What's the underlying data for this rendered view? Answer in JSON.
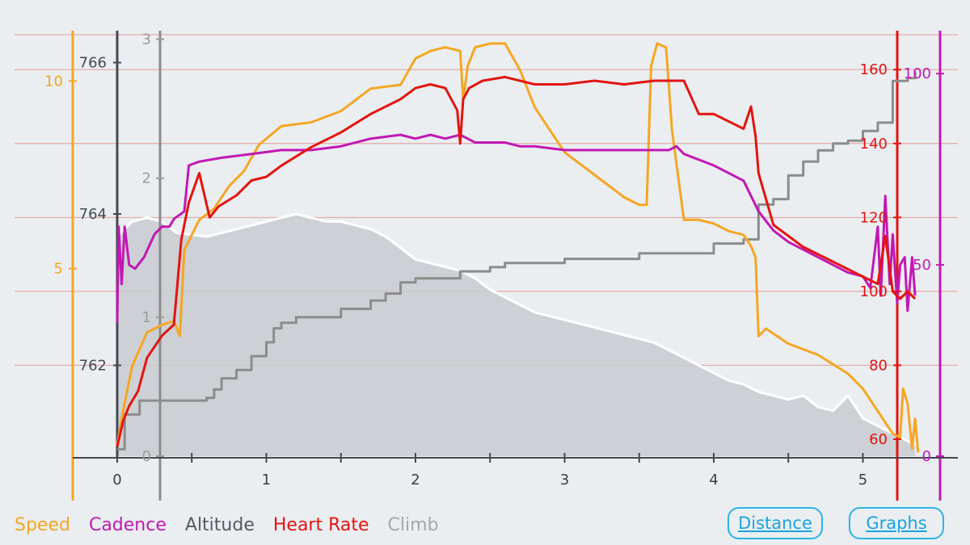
{
  "legend": {
    "speed": "Speed",
    "cadence": "Cadence",
    "altitude": "Altitude",
    "heart_rate": "Heart Rate",
    "climb": "Climb"
  },
  "buttons": {
    "distance": "Distance",
    "graphs": "Graphs"
  },
  "colors": {
    "background": "#eaeef1",
    "speed": "#f5a623",
    "cadence": "#c218b3",
    "altitude_axis": "#444a55",
    "heart_rate": "#e3140f",
    "climb": "#8c8c8c",
    "altitude_fill": "#c8cbd0",
    "button": "#2cb4e8"
  },
  "chart_data": {
    "type": "line",
    "x": {
      "range": [
        0,
        5.4
      ],
      "ticks": [
        0,
        1,
        2,
        3,
        4,
        5
      ],
      "tick_labels": [
        "0",
        "1",
        "2",
        "3",
        "4",
        "5"
      ]
    },
    "axes": {
      "speed": {
        "range": [
          0,
          11.3
        ],
        "ticks": [
          5,
          10
        ],
        "tick_labels": [
          "5",
          "10"
        ]
      },
      "altitude": {
        "range": [
          760.8,
          766.4
        ],
        "ticks": [
          762,
          764,
          766
        ],
        "tick_labels": [
          "762",
          "764",
          "766"
        ]
      },
      "climb": {
        "range": [
          0,
          3.05
        ],
        "ticks": [
          0,
          1,
          2,
          3
        ],
        "tick_labels": [
          "0",
          "1",
          "2",
          "3"
        ]
      },
      "heart_rate": {
        "range": [
          55.4,
          170.1
        ],
        "ticks": [
          60,
          80,
          100,
          120,
          140,
          160
        ],
        "tick_labels": [
          "60",
          "80",
          "100",
          "120",
          "140",
          "160"
        ]
      },
      "cadence": {
        "range": [
          0,
          110.8
        ],
        "ticks": [
          0,
          50,
          100
        ],
        "tick_labels": [
          "0",
          "50",
          "100"
        ]
      }
    },
    "series": [
      {
        "name": "Speed",
        "axis": "speed",
        "style": "line",
        "x": [
          0,
          0.03,
          0.1,
          0.2,
          0.3,
          0.38,
          0.42,
          0.45,
          0.55,
          0.65,
          0.75,
          0.85,
          0.95,
          1.1,
          1.3,
          1.5,
          1.7,
          1.9,
          2.0,
          2.1,
          2.2,
          2.3,
          2.32,
          2.35,
          2.4,
          2.5,
          2.6,
          2.7,
          2.8,
          2.9,
          3.0,
          3.1,
          3.2,
          3.3,
          3.4,
          3.5,
          3.55,
          3.58,
          3.62,
          3.68,
          3.72,
          3.8,
          3.9,
          4.0,
          4.1,
          4.2,
          4.25,
          4.28,
          4.3,
          4.35,
          4.5,
          4.7,
          4.9,
          5.0,
          5.1,
          5.2,
          5.25,
          5.27,
          5.3,
          5.33,
          5.35,
          5.37
        ],
        "y": [
          0.3,
          1.0,
          2.4,
          3.3,
          3.5,
          3.6,
          3.2,
          5.5,
          6.3,
          6.6,
          7.2,
          7.6,
          8.3,
          8.8,
          8.9,
          9.2,
          9.8,
          9.9,
          10.6,
          10.8,
          10.9,
          10.8,
          9.5,
          10.4,
          10.9,
          11.0,
          11.0,
          10.3,
          9.3,
          8.7,
          8.1,
          7.8,
          7.5,
          7.2,
          6.9,
          6.7,
          6.7,
          10.4,
          11.0,
          10.9,
          8.7,
          6.3,
          6.3,
          6.2,
          6.0,
          5.9,
          5.6,
          5.3,
          3.2,
          3.4,
          3.0,
          2.7,
          2.2,
          1.8,
          1.2,
          0.6,
          0.5,
          1.8,
          1.4,
          0.2,
          1.0,
          0.1
        ]
      },
      {
        "name": "Heart Rate",
        "axis": "heart_rate",
        "style": "line",
        "x": [
          0,
          0.04,
          0.08,
          0.14,
          0.2,
          0.3,
          0.38,
          0.43,
          0.48,
          0.55,
          0.62,
          0.68,
          0.8,
          0.9,
          1.0,
          1.1,
          1.3,
          1.5,
          1.7,
          1.9,
          2.0,
          2.1,
          2.2,
          2.28,
          2.3,
          2.32,
          2.36,
          2.45,
          2.6,
          2.8,
          3.0,
          3.2,
          3.4,
          3.6,
          3.8,
          3.9,
          4.0,
          4.1,
          4.2,
          4.25,
          4.28,
          4.3,
          4.4,
          4.6,
          4.8,
          5.0,
          5.1,
          5.15,
          5.2,
          5.25,
          5.3,
          5.35
        ],
        "y": [
          58,
          65,
          69,
          73,
          82,
          88,
          91,
          114,
          124,
          132,
          120,
          123,
          126,
          130,
          131,
          134,
          139,
          143,
          148,
          152,
          155,
          156,
          155,
          149,
          140,
          152,
          155,
          157,
          158,
          156,
          156,
          157,
          156,
          157,
          157,
          148,
          148,
          146,
          144,
          150,
          142,
          132,
          118,
          112,
          108,
          104,
          102,
          115,
          100,
          98,
          100,
          98
        ]
      },
      {
        "name": "Cadence",
        "axis": "cadence",
        "style": "line",
        "x": [
          0,
          0.01,
          0.03,
          0.05,
          0.08,
          0.12,
          0.18,
          0.25,
          0.3,
          0.35,
          0.38,
          0.45,
          0.48,
          0.55,
          0.7,
          0.9,
          1.1,
          1.3,
          1.5,
          1.7,
          1.9,
          2.0,
          2.1,
          2.2,
          2.3,
          2.35,
          2.4,
          2.5,
          2.6,
          2.7,
          2.8,
          3.0,
          3.2,
          3.4,
          3.6,
          3.7,
          3.75,
          3.8,
          4.0,
          4.2,
          4.3,
          4.4,
          4.5,
          4.7,
          4.9,
          5.0,
          5.05,
          5.1,
          5.12,
          5.15,
          5.18,
          5.2,
          5.23,
          5.25,
          5.28,
          5.3,
          5.33,
          5.35
        ],
        "y": [
          35,
          60,
          45,
          60,
          50,
          49,
          52,
          58,
          60,
          60,
          62,
          64,
          76,
          77,
          78,
          79,
          80,
          80,
          81,
          83,
          84,
          83,
          84,
          83,
          84,
          83,
          82,
          82,
          82,
          81,
          81,
          80,
          80,
          80,
          80,
          80,
          81,
          79,
          76,
          72,
          64,
          59,
          56,
          52,
          48,
          47,
          44,
          60,
          42,
          68,
          45,
          58,
          40,
          50,
          52,
          38,
          52,
          42
        ]
      },
      {
        "name": "Climb",
        "axis": "climb",
        "style": "step",
        "x": [
          0,
          0.05,
          0.15,
          0.2,
          0.6,
          0.65,
          0.7,
          0.8,
          0.9,
          1.0,
          1.05,
          1.1,
          1.2,
          1.5,
          1.7,
          1.8,
          1.9,
          2.0,
          2.3,
          2.5,
          2.6,
          3.0,
          3.5,
          4.0,
          4.2,
          4.3,
          4.4,
          4.5,
          4.6,
          4.7,
          4.8,
          4.9,
          5.0,
          5.1,
          5.2,
          5.3,
          5.35
        ],
        "y": [
          0.05,
          0.3,
          0.4,
          0.4,
          0.42,
          0.48,
          0.56,
          0.62,
          0.72,
          0.82,
          0.92,
          0.96,
          1.0,
          1.06,
          1.12,
          1.17,
          1.25,
          1.28,
          1.33,
          1.36,
          1.39,
          1.42,
          1.46,
          1.53,
          1.56,
          1.81,
          1.85,
          2.02,
          2.12,
          2.2,
          2.25,
          2.27,
          2.34,
          2.4,
          2.7,
          2.72,
          2.77
        ]
      },
      {
        "name": "Altitude",
        "axis": "altitude",
        "style": "area",
        "x": [
          0,
          0.1,
          0.2,
          0.3,
          0.4,
          0.6,
          0.8,
          1.0,
          1.1,
          1.2,
          1.3,
          1.4,
          1.5,
          1.6,
          1.7,
          1.8,
          1.9,
          2.0,
          2.1,
          2.2,
          2.3,
          2.4,
          2.5,
          2.6,
          2.7,
          2.8,
          2.9,
          3.0,
          3.1,
          3.2,
          3.3,
          3.4,
          3.5,
          3.6,
          3.7,
          3.8,
          3.9,
          4.0,
          4.1,
          4.2,
          4.3,
          4.4,
          4.5,
          4.6,
          4.7,
          4.8,
          4.9,
          5.0,
          5.1,
          5.2,
          5.3,
          5.35
        ],
        "y": [
          763.7,
          763.9,
          763.95,
          763.9,
          763.75,
          763.7,
          763.8,
          763.9,
          763.95,
          764.0,
          763.95,
          763.9,
          763.9,
          763.85,
          763.8,
          763.7,
          763.55,
          763.4,
          763.35,
          763.3,
          763.25,
          763.15,
          763.0,
          762.9,
          762.8,
          762.7,
          762.65,
          762.6,
          762.55,
          762.5,
          762.45,
          762.4,
          762.35,
          762.3,
          762.2,
          762.1,
          762.0,
          761.9,
          761.8,
          761.75,
          761.65,
          761.6,
          761.55,
          761.6,
          761.45,
          761.4,
          761.6,
          761.3,
          761.2,
          761.1,
          761.0,
          760.95
        ]
      }
    ]
  }
}
